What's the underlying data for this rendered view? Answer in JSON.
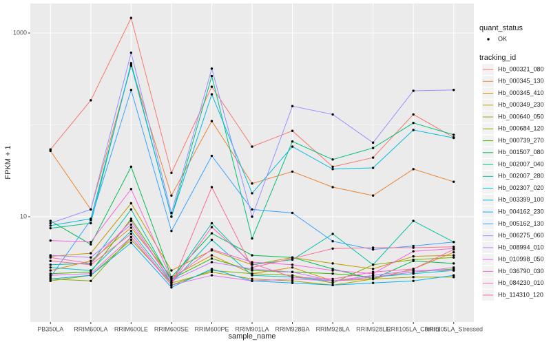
{
  "chart_data": {
    "type": "line",
    "log_y": true,
    "grid": true,
    "x_label": "sample_name",
    "y_label": "FPKM + 1",
    "categories": [
      "PB350LA",
      "RRIM600LA",
      "RRIM600LE",
      "RRIM600SE",
      "RRIM600PE",
      "RRIM901LA",
      "RRIM928BA",
      "RRIM928LA",
      "RRIM928LE",
      "RRII105LA_Control",
      "RRII105LA_Stressed"
    ],
    "ylim": [
      0.714,
      2100
    ],
    "yticks": [
      10,
      1000
    ],
    "point_legend": {
      "title": "quant_status",
      "levels": [
        "OK"
      ]
    },
    "legend_title": "tracking_id",
    "legend_position": "right",
    "series": [
      {
        "name": "Hb_000321_080",
        "color": "#F8766D",
        "values": [
          54,
          185,
          1460,
          30,
          260,
          58,
          86,
          35,
          44,
          130,
          73
        ]
      },
      {
        "name": "Hb_000345_130",
        "color": "#EA8331",
        "values": [
          52,
          12,
          440,
          17,
          110,
          23,
          31,
          21,
          17,
          33,
          24
        ]
      },
      {
        "name": "Hb_000345_410",
        "color": "#D89000",
        "values": [
          2.6,
          3.3,
          7.6,
          2.2,
          3.8,
          2.4,
          2.8,
          2.0,
          2.1,
          2.7,
          4.1
        ]
      },
      {
        "name": "Hb_000349_230",
        "color": "#C09B00",
        "values": [
          3.7,
          4.0,
          14,
          2.6,
          4.3,
          3.0,
          3.6,
          3.1,
          2.7,
          3.7,
          3.8
        ]
      },
      {
        "name": "Hb_000640_050",
        "color": "#A3A500",
        "values": [
          2.0,
          2.3,
          5.6,
          1.9,
          2.5,
          2.1,
          2.0,
          1.8,
          2.1,
          2.2,
          2.2
        ]
      },
      {
        "name": "Hb_000684_120",
        "color": "#7CAE00",
        "values": [
          2.1,
          2.0,
          6.0,
          1.8,
          2.6,
          2.4,
          2.3,
          1.9,
          3.0,
          3.4,
          3.6
        ]
      },
      {
        "name": "Hb_000739_270",
        "color": "#39B600",
        "values": [
          2.4,
          2.5,
          9.5,
          2.1,
          3.5,
          2.6,
          2.5,
          2.4,
          2.2,
          2.5,
          2.7
        ]
      },
      {
        "name": "Hb_001507_080",
        "color": "#00BB4E",
        "values": [
          9.0,
          5.0,
          35,
          2.2,
          6.6,
          3.8,
          3.6,
          2.7,
          2.1,
          3.3,
          3.1
        ]
      },
      {
        "name": "Hb_002007_040",
        "color": "#00BF7D",
        "values": [
          7.5,
          8.5,
          470,
          10,
          340,
          5.8,
          66,
          42,
          56,
          105,
          78
        ]
      },
      {
        "name": "Hb_002007_280",
        "color": "#00C1A3",
        "values": [
          3.0,
          3.1,
          12,
          2.0,
          8.5,
          3.0,
          3.4,
          6.5,
          3.0,
          9.0,
          5.3
        ]
      },
      {
        "name": "Hb_002307_020",
        "color": "#00BFC4",
        "values": [
          2.8,
          2.6,
          7.0,
          1.9,
          5.6,
          2.3,
          2.2,
          2.0,
          2.2,
          2.4,
          2.6
        ]
      },
      {
        "name": "Hb_003399_100",
        "color": "#00BAE0",
        "values": [
          8.0,
          9.5,
          450,
          10,
          215,
          18,
          58,
          33,
          34,
          88,
          72
        ]
      },
      {
        "name": "Hb_004162_230",
        "color": "#00B0F6",
        "values": [
          2.1,
          2.3,
          5.2,
          1.7,
          2.7,
          2.0,
          1.9,
          1.8,
          1.9,
          2.0,
          2.3
        ]
      },
      {
        "name": "Hb_005162_130",
        "color": "#35A2FF",
        "values": [
          2.2,
          9.2,
          240,
          7.0,
          46,
          12,
          11,
          5.4,
          4.4,
          4.8,
          5.3
        ]
      },
      {
        "name": "Hb_006275_060",
        "color": "#9590FF",
        "values": [
          8.5,
          12,
          610,
          11,
          410,
          10,
          160,
          130,
          64,
          235,
          240
        ]
      },
      {
        "name": "Hb_008994_010",
        "color": "#C77CFF",
        "values": [
          3.8,
          3.6,
          8.2,
          2.0,
          3.2,
          2.7,
          2.5,
          2.0,
          2.3,
          2.6,
          2.6
        ]
      },
      {
        "name": "Hb_010998_050",
        "color": "#E76BF3",
        "values": [
          2.3,
          2.4,
          6.0,
          1.8,
          2.3,
          2.0,
          2.1,
          2.0,
          2.2,
          2.5,
          2.8
        ]
      },
      {
        "name": "Hb_036790_030",
        "color": "#FA62DB",
        "values": [
          5.5,
          5.3,
          20,
          2.1,
          4.4,
          3.2,
          3.0,
          2.6,
          2.4,
          4.2,
          4.5
        ]
      },
      {
        "name": "Hb_084230_010",
        "color": "#FF62BC",
        "values": [
          3.6,
          3.1,
          9.0,
          1.9,
          7.7,
          3.1,
          2.2,
          2.1,
          2.5,
          2.7,
          4.4
        ]
      },
      {
        "name": "Hb_114310_120",
        "color": "#FF6C91",
        "values": [
          3.3,
          3.0,
          6.5,
          1.8,
          21,
          2.8,
          3.5,
          4.5,
          4.6,
          4.6,
          4.7
        ]
      }
    ]
  }
}
